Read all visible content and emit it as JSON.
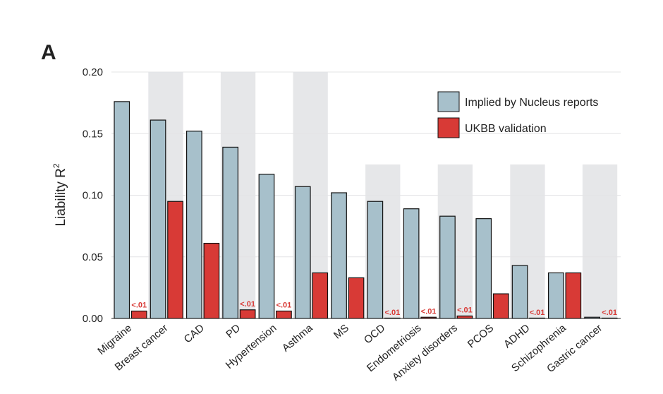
{
  "panel_label": "A",
  "chart_data": {
    "type": "bar",
    "title": "",
    "xlabel": "",
    "ylabel": "Liability R",
    "ylabel_superscript": "2",
    "ylim": [
      0,
      0.2
    ],
    "yticks": [
      "0.00",
      "0.05",
      "0.10",
      "0.15",
      "0.20"
    ],
    "ytick_values": [
      0,
      0.05,
      0.1,
      0.15,
      0.2
    ],
    "grid": true,
    "categories": [
      "Migraine",
      "Breast cancer",
      "CAD",
      "PD",
      "Hypertension",
      "Asthma",
      "MS",
      "OCD",
      "Endometriosis",
      "Anxiety disorders",
      "PCOS",
      "ADHD",
      "Schizophrenia",
      "Gastric cancer"
    ],
    "series": [
      {
        "name": "Implied by Nucleus reports",
        "color": "#a7c0cb",
        "values": [
          0.176,
          0.161,
          0.152,
          0.139,
          0.117,
          0.107,
          0.102,
          0.095,
          0.089,
          0.083,
          0.081,
          0.043,
          0.037,
          0.001
        ]
      },
      {
        "name": "UKBB validation",
        "color": "#d83a36",
        "values": [
          0.006,
          0.095,
          0.061,
          0.007,
          0.006,
          0.037,
          0.033,
          0.0,
          0.001,
          0.002,
          0.02,
          0.0,
          0.037,
          0.0
        ]
      }
    ],
    "annotations": [
      "<.01",
      "",
      "",
      "<.01",
      "<.01",
      "",
      "",
      "<.01",
      "<.01",
      "<.01",
      "",
      "<.01",
      "",
      "<.01"
    ],
    "annotation_color": "#d83a36",
    "shaded_categories": [
      1,
      3,
      5,
      7,
      9,
      11,
      13
    ],
    "legend_position": "top-right"
  }
}
